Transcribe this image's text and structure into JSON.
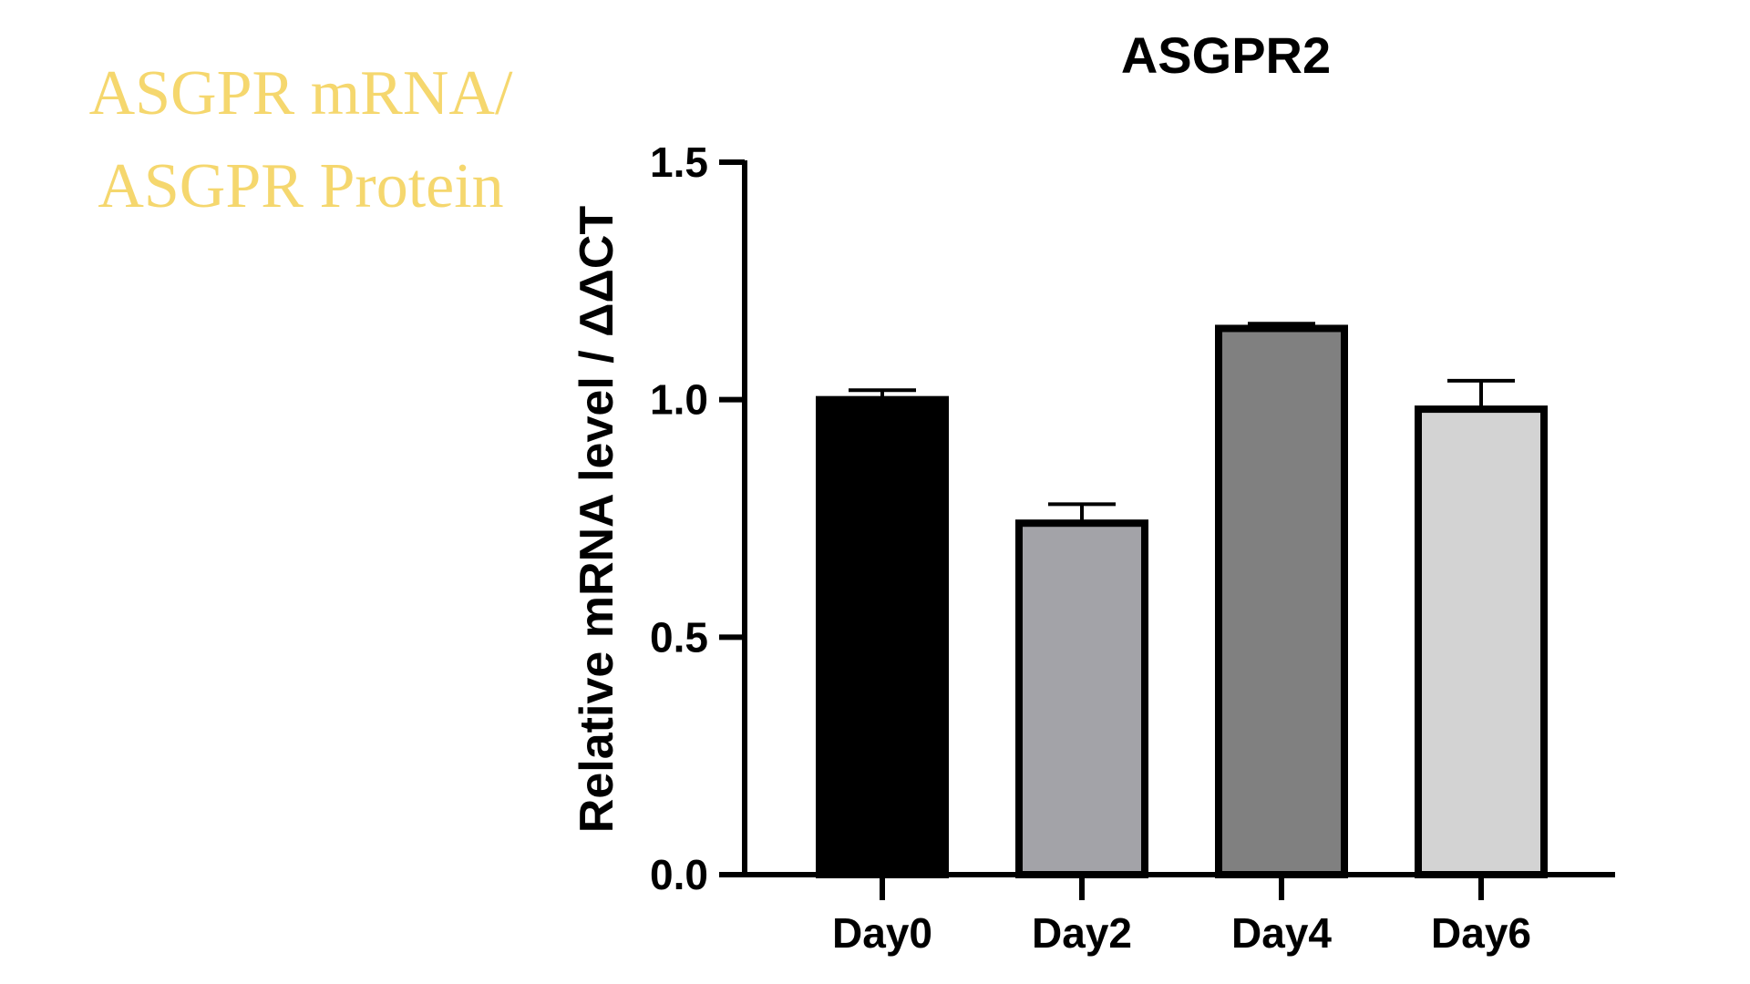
{
  "caption": {
    "line1": "ASGPR mRNA/",
    "line2": "ASGPR Protein",
    "color": "#F5D76E"
  },
  "chart_data": {
    "type": "bar",
    "title": "ASGPR2",
    "xlabel": "",
    "ylabel": "Relative mRNA level / ΔΔCT",
    "categories": [
      "Day0",
      "Day2",
      "Day4",
      "Day6"
    ],
    "values": [
      1.0,
      0.74,
      1.15,
      0.98
    ],
    "error": [
      0.02,
      0.04,
      0.01,
      0.06
    ],
    "colors": [
      "#000000",
      "#A3A3A8",
      "#808080",
      "#D3D3D3"
    ],
    "ylim": [
      0,
      1.5
    ],
    "yticks": [
      "0.0",
      "0.5",
      "1.0",
      "1.5"
    ],
    "grid": false,
    "legend": "none"
  }
}
